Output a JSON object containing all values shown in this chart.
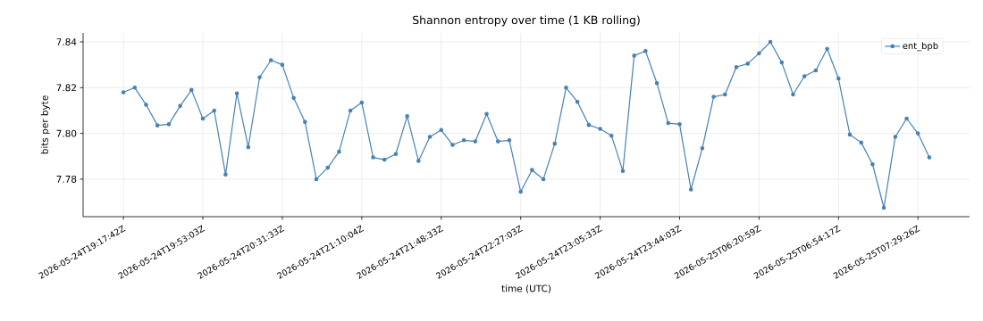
{
  "chart_data": {
    "type": "line",
    "title": "Shannon entropy over time (1 KB rolling)",
    "xlabel": "time (UTC)",
    "ylabel": "bits per byte",
    "categories": [
      "2026-05-24T19:17:42Z",
      null,
      null,
      null,
      null,
      null,
      null,
      "2026-05-24T19:53:03Z",
      null,
      null,
      null,
      null,
      null,
      null,
      "2026-05-24T20:31:33Z",
      null,
      null,
      null,
      null,
      null,
      null,
      "2026-05-24T21:10:04Z",
      null,
      null,
      null,
      null,
      null,
      null,
      "2026-05-24T21:48:33Z",
      null,
      null,
      null,
      null,
      null,
      null,
      "2026-05-24T22:27:03Z",
      null,
      null,
      null,
      null,
      null,
      null,
      "2026-05-24T23:05:33Z",
      null,
      null,
      null,
      null,
      null,
      null,
      "2026-05-24T23:44:03Z",
      null,
      null,
      null,
      null,
      null,
      null,
      "2026-05-25T06:20:59Z",
      null,
      null,
      null,
      null,
      null,
      null,
      "2026-05-25T06:54:17Z",
      null,
      null,
      null,
      null,
      null,
      null,
      "2026-05-25T07:29:26Z",
      null
    ],
    "series": [
      {
        "name": "ent_bpb",
        "color": "#4682b4",
        "values": [
          7.818,
          7.82,
          7.8125,
          7.8035,
          7.804,
          7.812,
          7.819,
          7.8065,
          7.81,
          7.782,
          7.8175,
          7.794,
          7.8245,
          7.832,
          7.83,
          7.8155,
          7.805,
          7.78,
          7.785,
          7.792,
          7.81,
          7.8135,
          7.7895,
          7.7885,
          7.791,
          7.8075,
          7.788,
          7.7985,
          7.8015,
          7.795,
          7.797,
          7.7965,
          7.8085,
          7.7965,
          7.797,
          7.7745,
          7.784,
          7.78,
          7.7955,
          7.82,
          7.8138,
          7.8037,
          7.802,
          7.799,
          7.7836,
          7.834,
          7.836,
          7.822,
          7.8045,
          7.804,
          7.7755,
          7.7935,
          7.816,
          7.817,
          7.829,
          7.8305,
          7.835,
          7.84,
          7.831,
          7.817,
          7.825,
          7.8275,
          7.837,
          7.824,
          7.7995,
          7.796,
          7.7865,
          7.7675,
          7.7985,
          7.8065,
          7.8,
          7.7895
        ]
      }
    ],
    "ylim": [
      7.7636,
      7.8439
    ],
    "yticks": [
      7.78,
      {
        "value": 7.8,
        "label": "7.80"
      },
      7.82,
      7.84
    ],
    "grid": true,
    "legend": "top right",
    "marker": "circle",
    "line_style": "solid"
  }
}
